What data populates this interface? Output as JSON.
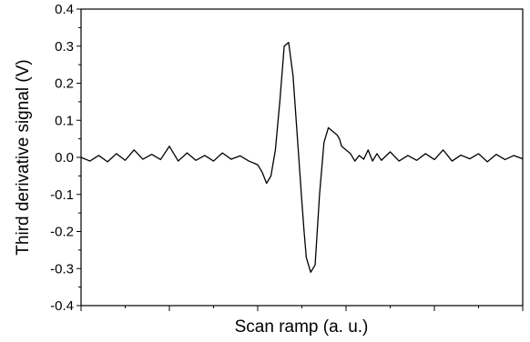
{
  "chart_data": {
    "type": "line",
    "title": "",
    "xlabel": "Scan ramp (a. u.)",
    "ylabel": "Third derivative signal (V)",
    "xlim": [
      0,
      1
    ],
    "ylim": [
      -0.4,
      0.4
    ],
    "x_tick_labels": [],
    "y_ticks": [
      0.4,
      0.3,
      0.2,
      0.1,
      0.0,
      -0.1,
      -0.2,
      -0.3,
      -0.4
    ],
    "y_tick_labels": [
      "0.4",
      "0.3",
      "0.2",
      "0.1",
      "0.0",
      "-0.1",
      "-0.2",
      "-0.3",
      "-0.4"
    ],
    "grid": false,
    "series": [
      {
        "color": "#000000",
        "x": [
          0.0,
          0.02,
          0.04,
          0.06,
          0.08,
          0.1,
          0.12,
          0.14,
          0.16,
          0.18,
          0.2,
          0.22,
          0.24,
          0.26,
          0.28,
          0.3,
          0.32,
          0.34,
          0.36,
          0.38,
          0.4,
          0.41,
          0.42,
          0.43,
          0.44,
          0.45,
          0.46,
          0.47,
          0.48,
          0.49,
          0.5,
          0.505,
          0.51,
          0.52,
          0.53,
          0.54,
          0.55,
          0.56,
          0.57,
          0.58,
          0.585,
          0.59,
          0.6,
          0.61,
          0.62,
          0.63,
          0.64,
          0.65,
          0.66,
          0.67,
          0.68,
          0.7,
          0.72,
          0.74,
          0.76,
          0.78,
          0.8,
          0.82,
          0.84,
          0.86,
          0.88,
          0.9,
          0.92,
          0.94,
          0.96,
          0.98,
          1.0
        ],
        "y": [
          0.0,
          -0.01,
          0.005,
          -0.012,
          0.01,
          -0.008,
          0.02,
          -0.005,
          0.008,
          -0.006,
          0.03,
          -0.01,
          0.012,
          -0.008,
          0.005,
          -0.01,
          0.012,
          -0.005,
          0.004,
          -0.01,
          -0.02,
          -0.04,
          -0.07,
          -0.05,
          0.02,
          0.15,
          0.3,
          0.31,
          0.22,
          0.05,
          -0.12,
          -0.2,
          -0.27,
          -0.31,
          -0.29,
          -0.1,
          0.04,
          0.08,
          0.07,
          0.06,
          0.05,
          0.03,
          0.02,
          0.01,
          -0.01,
          0.005,
          -0.005,
          0.02,
          -0.01,
          0.01,
          -0.008,
          0.015,
          -0.01,
          0.005,
          -0.008,
          0.01,
          -0.006,
          0.02,
          -0.01,
          0.006,
          -0.004,
          0.01,
          -0.012,
          0.008,
          -0.006,
          0.005,
          -0.004
        ]
      }
    ]
  }
}
